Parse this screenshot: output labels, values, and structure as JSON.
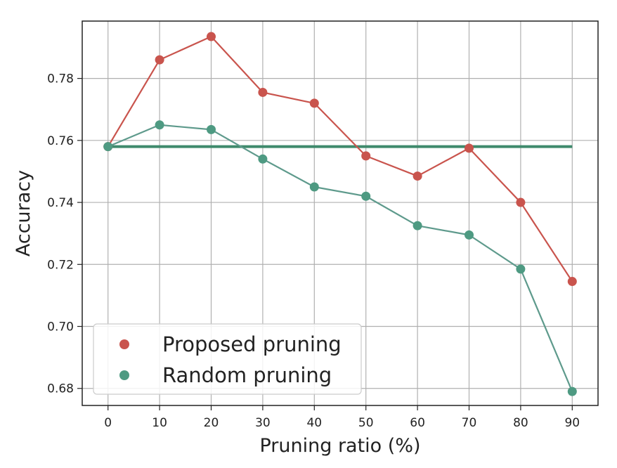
{
  "chart_data": {
    "type": "line",
    "title": "",
    "xlabel": "Pruning ratio (%)",
    "ylabel": "Accuracy",
    "x": [
      0,
      10,
      20,
      30,
      40,
      50,
      60,
      70,
      80,
      90
    ],
    "xlim": [
      -5,
      95
    ],
    "ylim": [
      0.6745,
      0.7985
    ],
    "xticks": [
      0,
      10,
      20,
      30,
      40,
      50,
      60,
      70,
      80,
      90
    ],
    "yticks": [
      0.68,
      0.7,
      0.72,
      0.74,
      0.76,
      0.78
    ],
    "ytick_labels": [
      "0.68",
      "0.70",
      "0.72",
      "0.74",
      "0.76",
      "0.78"
    ],
    "grid": true,
    "legend_position": "lower-left",
    "series": [
      {
        "name": "Proposed pruning",
        "color": "#c9544d",
        "marker": "circle",
        "values": [
          0.758,
          0.786,
          0.7935,
          0.7755,
          0.772,
          0.755,
          0.7485,
          0.7575,
          0.74,
          0.7145
        ]
      },
      {
        "name": "Random pruning",
        "color": "#4e9a82",
        "line_color": "#5e9a8c",
        "marker": "circle",
        "values": [
          0.758,
          0.765,
          0.7635,
          0.754,
          0.745,
          0.742,
          0.7325,
          0.7295,
          0.7185,
          0.679
        ]
      }
    ],
    "reference_line": {
      "y": 0.758,
      "x_range": [
        0,
        90
      ],
      "color": "#3f8a6c"
    }
  }
}
